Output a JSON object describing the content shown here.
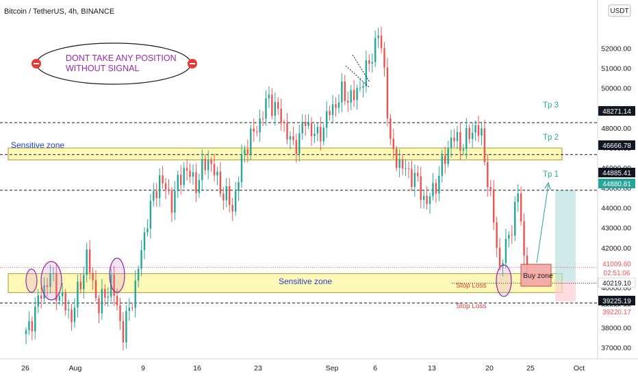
{
  "header": {
    "title": "Bitcoin / TetherUS, 4h, BINANCE",
    "currency_button": "USDT"
  },
  "notice": {
    "line1": "DONT TAKE ANY POSITION",
    "line2": "WITHOUT SIGNAL"
  },
  "annotations": {
    "sensitive_zone_upper": "Sensitive zone",
    "sensitive_zone_lower": "Sensitive zone",
    "buy_zone": "Buy zone",
    "stop_loss_1": "Stop Loss",
    "stop_loss_2": "Stop Loss",
    "tp1": "Tp 1",
    "tp2": "Tp 2",
    "tp3": "Tp 3"
  },
  "colors": {
    "up": "#26a69a",
    "down": "#ef5350",
    "zone_fill": "#fff59d",
    "zone_border": "#9e9a3a",
    "text_blue": "#1e3fd6",
    "tp_text": "#26a69a",
    "stop_text": "#e53935",
    "notice_text": "#9c27b0"
  },
  "chart_data": {
    "type": "candlestick",
    "title": "Bitcoin / TetherUS, 4h, BINANCE",
    "ylim": [
      36500,
      53800
    ],
    "y_ticks": [
      37000,
      38000,
      39000,
      40000,
      41000,
      42000,
      43000,
      44000,
      45000,
      46000,
      47000,
      48000,
      49000,
      50000,
      51000,
      52000
    ],
    "x_ticks": [
      "26",
      "Aug",
      "9",
      "16",
      "23",
      "Sep",
      "6",
      "13",
      "20",
      "25",
      "Oct"
    ],
    "grid": false,
    "price_anchors": [
      [
        0,
        37600
      ],
      [
        5,
        39700
      ],
      [
        8,
        40600
      ],
      [
        10,
        39900
      ],
      [
        15,
        38500
      ],
      [
        20,
        41500
      ],
      [
        24,
        39000
      ],
      [
        28,
        40300
      ],
      [
        32,
        37700
      ],
      [
        36,
        40100
      ],
      [
        40,
        43500
      ],
      [
        44,
        45500
      ],
      [
        48,
        44300
      ],
      [
        52,
        46000
      ],
      [
        56,
        45200
      ],
      [
        60,
        46500
      ],
      [
        64,
        45000
      ],
      [
        68,
        44000
      ],
      [
        72,
        47000
      ],
      [
        76,
        48000
      ],
      [
        80,
        49500
      ],
      [
        84,
        48500
      ],
      [
        88,
        47000
      ],
      [
        92,
        48300
      ],
      [
        96,
        47500
      ],
      [
        100,
        48800
      ],
      [
        104,
        49700
      ],
      [
        108,
        49500
      ],
      [
        112,
        50800
      ],
      [
        116,
        52700
      ],
      [
        118,
        51000
      ],
      [
        120,
        47000
      ],
      [
        124,
        46000
      ],
      [
        128,
        45500
      ],
      [
        132,
        44200
      ],
      [
        136,
        45600
      ],
      [
        140,
        47500
      ],
      [
        144,
        47200
      ],
      [
        148,
        48100
      ],
      [
        150,
        47500
      ],
      [
        152,
        45500
      ],
      [
        154,
        43300
      ],
      [
        156,
        41000
      ],
      [
        158,
        42000
      ],
      [
        160,
        43200
      ],
      [
        162,
        44600
      ],
      [
        163,
        43500
      ],
      [
        164,
        41500
      ],
      [
        165,
        41000
      ]
    ],
    "horizontal_levels": [
      {
        "label": "Tp 3",
        "price": 48271.14
      },
      {
        "label": "Tp 2",
        "price": 46666.78
      },
      {
        "label": "Tp 1",
        "price": 44880.81
      }
    ],
    "stop_levels": [
      39225.19
    ],
    "zones": [
      {
        "label": "Sensitive zone",
        "from": 46400,
        "to": 47000
      },
      {
        "label": "Sensitive zone",
        "from": 39750,
        "to": 40700
      }
    ],
    "price_axis_tags": [
      {
        "value": "48271.14",
        "style": "black"
      },
      {
        "value": "46666.78",
        "style": "black"
      },
      {
        "value": "44885.41",
        "style": "black"
      },
      {
        "value": "44880.81",
        "style": "green"
      },
      {
        "value": "41009.60",
        "style": "red"
      },
      {
        "value": "02:51:06",
        "style": "red"
      },
      {
        "value": "40219.10",
        "style": "white"
      },
      {
        "value": "39225.19",
        "style": "black"
      },
      {
        "value": "39220.17",
        "style": "red"
      }
    ]
  }
}
